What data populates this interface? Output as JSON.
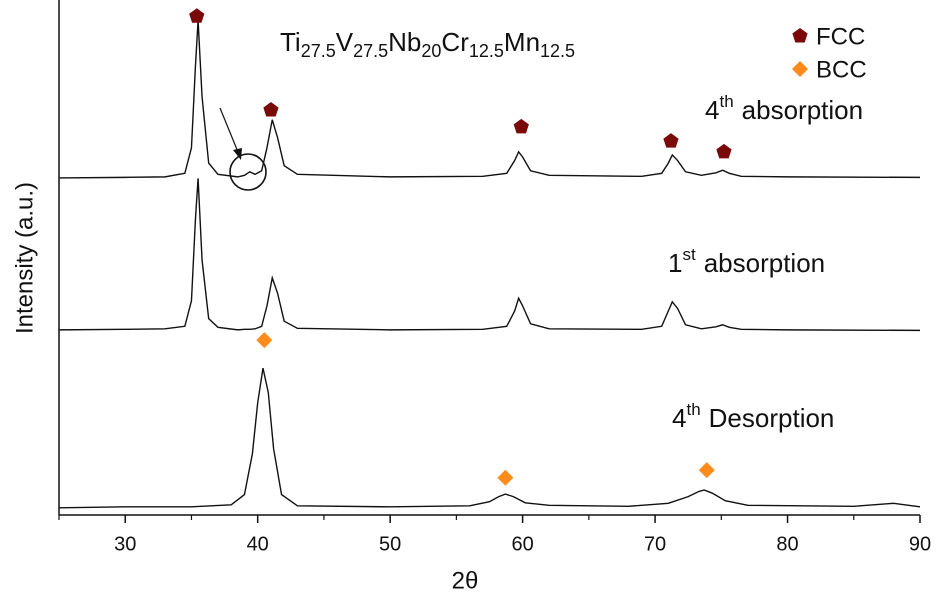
{
  "chart_data": {
    "type": "line",
    "formula": [
      {
        "text": "Ti",
        "sub": "27.5"
      },
      {
        "text": "V",
        "sub": "27.5"
      },
      {
        "text": "Nb",
        "sub": "20"
      },
      {
        "text": "Cr",
        "sub": "12.5"
      },
      {
        "text": "Mn",
        "sub": "12.5"
      }
    ],
    "x_label": "2θ",
    "y_label": "Intensity (a.u.)",
    "xlim": [
      25,
      90
    ],
    "xticks": [
      30,
      40,
      50,
      60,
      70,
      80,
      90
    ],
    "xminorticks": [
      25,
      35,
      45,
      55,
      65,
      75,
      85
    ],
    "ylim": [
      0,
      100
    ],
    "legend": "upper right",
    "series": [
      {
        "label": {
          "num": "4",
          "sup": "th",
          "text": "absorption"
        },
        "color": "#111111",
        "x": [
          25,
          30,
          33,
          34.5,
          35.0,
          35.3,
          35.5,
          35.8,
          36.3,
          37,
          38.5,
          39.0,
          39.4,
          39.8,
          40.3,
          40.7,
          41.1,
          41.5,
          42,
          43,
          50,
          57,
          58.8,
          59.4,
          59.7,
          60.0,
          60.6,
          62,
          69,
          70.5,
          71.0,
          71.3,
          71.7,
          72.3,
          73.5,
          74.6,
          75.1,
          75.6,
          76.5,
          80,
          90
        ],
        "y": [
          66.1,
          66.2,
          66.3,
          67,
          72,
          88,
          97,
          82,
          69,
          66.8,
          66.3,
          66.6,
          67.3,
          66.8,
          67.5,
          72,
          77.5,
          74,
          68.5,
          66.8,
          66.3,
          66.4,
          67,
          69.5,
          71.2,
          70.2,
          67.5,
          66.6,
          66.4,
          67,
          69,
          70.6,
          69.5,
          67.3,
          66.6,
          67.1,
          67.6,
          67,
          66.4,
          66.3,
          66.2
        ]
      },
      {
        "label": {
          "num": "1",
          "sup": "st",
          "text": "absorption"
        },
        "color": "#111111",
        "x": [
          25,
          30,
          33,
          34.5,
          35.0,
          35.3,
          35.5,
          35.8,
          36.3,
          37,
          38.5,
          39.0,
          39.4,
          39.8,
          40.3,
          40.7,
          41.1,
          41.5,
          42,
          43,
          50,
          57,
          58.8,
          59.4,
          59.7,
          60.0,
          60.6,
          62,
          69,
          70.5,
          71.0,
          71.3,
          71.7,
          72.3,
          73.5,
          74.6,
          75.1,
          75.6,
          76.5,
          80,
          90
        ],
        "y": [
          36.3,
          36.4,
          36.5,
          37,
          42,
          58,
          66,
          50,
          38.5,
          36.8,
          36.3,
          36.4,
          36.4,
          36.5,
          37,
          41,
          46.5,
          43.5,
          38,
          36.6,
          36.3,
          36.4,
          37,
          40,
          42.5,
          41,
          37.5,
          36.5,
          36.4,
          37,
          40,
          41.8,
          40.5,
          37.3,
          36.5,
          36.9,
          37.3,
          36.8,
          36.4,
          36.3,
          36.2
        ]
      },
      {
        "label": {
          "num": "4",
          "sup": "th",
          "text": "Desorption"
        },
        "color": "#111111",
        "x": [
          25,
          30,
          35,
          38,
          39,
          39.6,
          40.0,
          40.4,
          40.8,
          41.2,
          41.8,
          43,
          50,
          56,
          57.5,
          58.2,
          58.7,
          59.3,
          60.2,
          62,
          68,
          71,
          72.5,
          73.3,
          73.7,
          74.3,
          75.3,
          77,
          85,
          88,
          90
        ],
        "y": [
          1.4,
          1.6,
          1.6,
          2,
          4,
          12,
          22,
          28.8,
          24,
          13,
          4,
          1.8,
          1.6,
          1.8,
          2.6,
          3.6,
          4.1,
          3.6,
          2.4,
          1.9,
          1.7,
          2.3,
          3.6,
          4.6,
          4.9,
          4.3,
          2.8,
          1.9,
          1.7,
          2.3,
          1.6
        ]
      }
    ],
    "markers": [
      {
        "name": "FCC",
        "color": "#7a0a0a",
        "shape": "pentagon",
        "x": [
          35.4,
          41.0,
          59.9,
          71.2,
          75.2
        ],
        "y": [
          97.8,
          79.4,
          76.1,
          73.3,
          71.2
        ]
      },
      {
        "name": "BCC",
        "color": "#ff8c1a",
        "shape": "diamond",
        "x": [
          40.5,
          58.7,
          73.9
        ],
        "y": [
          34.3,
          7.3,
          8.8
        ]
      }
    ]
  }
}
